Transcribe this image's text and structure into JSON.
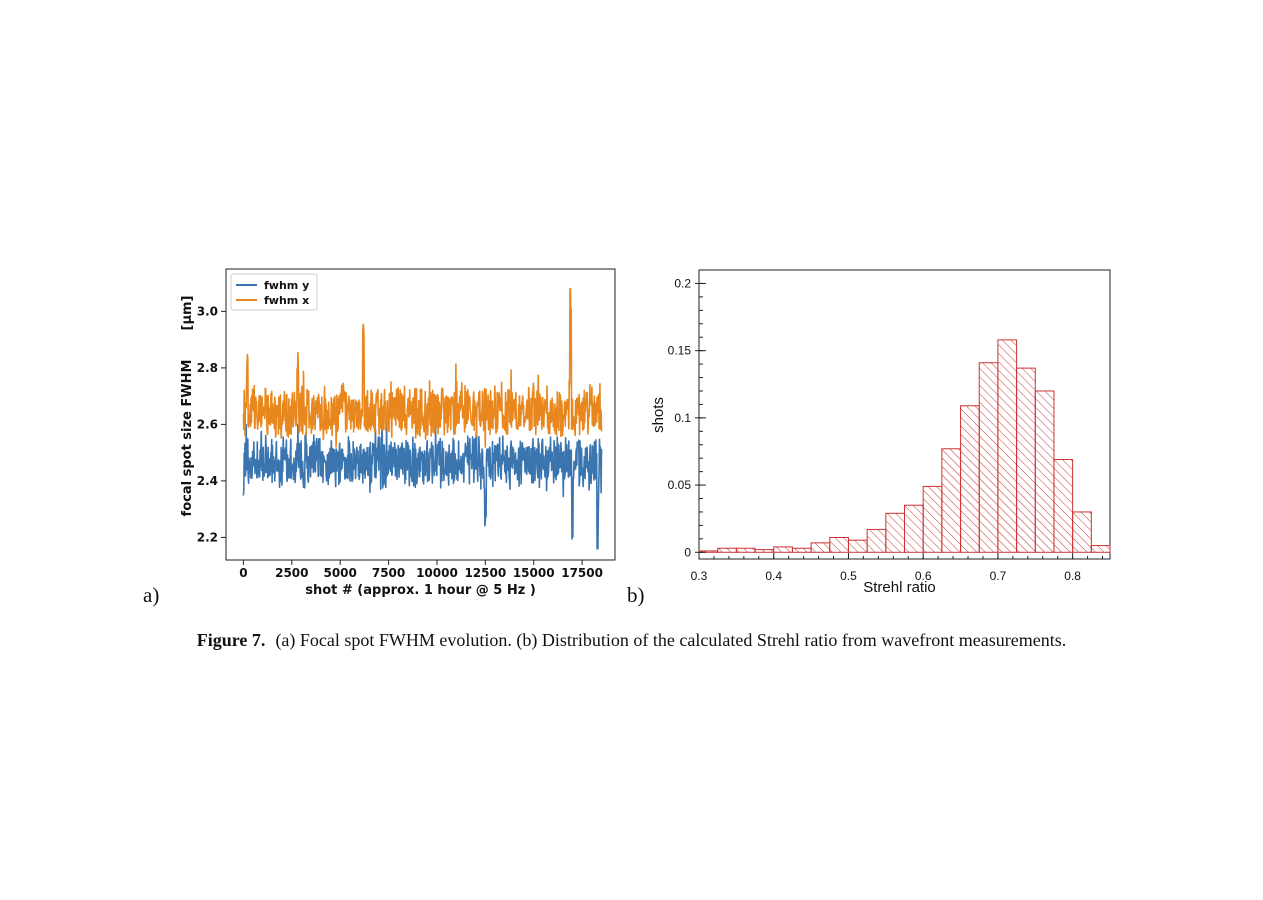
{
  "figure": {
    "caption_label": "Figure 7.",
    "caption_text": "(a) Focal spot FWHM evolution. (b) Distribution of the calculated Strehl ratio from wavefront measurements.",
    "panel_a_label": "a)",
    "panel_b_label": "b)"
  },
  "chart_data": [
    {
      "type": "line",
      "xlabel": "shot # (approx. 1 hour @ 5 Hz )",
      "ylabel": "focal spot size FWHM",
      "yunit": "[μm]",
      "xlim": [
        -900,
        19200
      ],
      "ylim": [
        2.12,
        3.15
      ],
      "xticks": [
        0,
        2500,
        5000,
        7500,
        10000,
        12500,
        15000,
        17500
      ],
      "xtick_labels": [
        "0",
        "2500",
        "5000",
        "7500",
        "10000",
        "12500",
        "15000",
        "17500"
      ],
      "yticks": [
        2.2,
        2.4,
        2.6,
        2.8,
        3.0
      ],
      "ytick_labels": [
        "2.2",
        "2.4",
        "2.6",
        "2.8",
        "3.0"
      ],
      "legend_position": "top-left",
      "grid": false,
      "series": [
        {
          "name": "fwhm y",
          "color": "#3a75b0",
          "x": [
            0,
            1000,
            2000,
            3000,
            4000,
            5000,
            6000,
            7000,
            8000,
            9000,
            10000,
            11000,
            12000,
            12500,
            13000,
            14000,
            15000,
            16000,
            16800,
            17000,
            17500,
            18000,
            18300,
            18500
          ],
          "y": [
            2.48,
            2.46,
            2.45,
            2.46,
            2.47,
            2.46,
            2.47,
            2.48,
            2.47,
            2.46,
            2.45,
            2.46,
            2.44,
            2.26,
            2.45,
            2.44,
            2.45,
            2.47,
            2.44,
            2.21,
            2.47,
            2.46,
            2.16,
            2.48
          ],
          "y_min": 2.16,
          "y_max": 2.6
        },
        {
          "name": "fwhm x",
          "color": "#e8871e",
          "x": [
            0,
            200,
            1000,
            2000,
            2800,
            4000,
            5000,
            6200,
            7000,
            8000,
            9000,
            10000,
            11000,
            12000,
            13000,
            14000,
            15000,
            16000,
            16900,
            17500,
            18000,
            18500
          ],
          "y": [
            2.63,
            2.83,
            2.64,
            2.63,
            2.82,
            2.64,
            2.65,
            2.97,
            2.65,
            2.66,
            2.65,
            2.66,
            2.64,
            2.65,
            2.66,
            2.65,
            2.66,
            2.66,
            3.08,
            2.66,
            2.67,
            2.64
          ],
          "y_min": 2.52,
          "y_max": 3.08
        }
      ]
    },
    {
      "type": "bar",
      "style": "hatched histogram",
      "xlabel": "Strehl ratio",
      "ylabel": "shots",
      "xlim": [
        0.3,
        0.85
      ],
      "ylim": [
        -0.005,
        0.21
      ],
      "xticks": [
        0.3,
        0.4,
        0.5,
        0.6,
        0.7,
        0.8
      ],
      "xtick_labels": [
        "0.3",
        "0.4",
        "0.5",
        "0.6",
        "0.7",
        "0.8"
      ],
      "yticks": [
        0,
        0.05,
        0.1,
        0.15,
        0.2
      ],
      "ytick_labels": [
        "0",
        "0.05",
        "0.1",
        "0.15",
        "0.2"
      ],
      "bin_width": 0.025,
      "bin_starts": [
        0.3,
        0.325,
        0.35,
        0.375,
        0.4,
        0.425,
        0.45,
        0.475,
        0.5,
        0.525,
        0.55,
        0.575,
        0.6,
        0.625,
        0.65,
        0.675,
        0.7,
        0.725,
        0.75,
        0.775,
        0.8,
        0.825
      ],
      "values": [
        0.001,
        0.003,
        0.003,
        0.002,
        0.004,
        0.003,
        0.007,
        0.011,
        0.009,
        0.017,
        0.029,
        0.035,
        0.049,
        0.077,
        0.109,
        0.141,
        0.158,
        0.137,
        0.12,
        0.069,
        0.03,
        0.005
      ],
      "color": "#cc3333",
      "grid": false
    }
  ]
}
